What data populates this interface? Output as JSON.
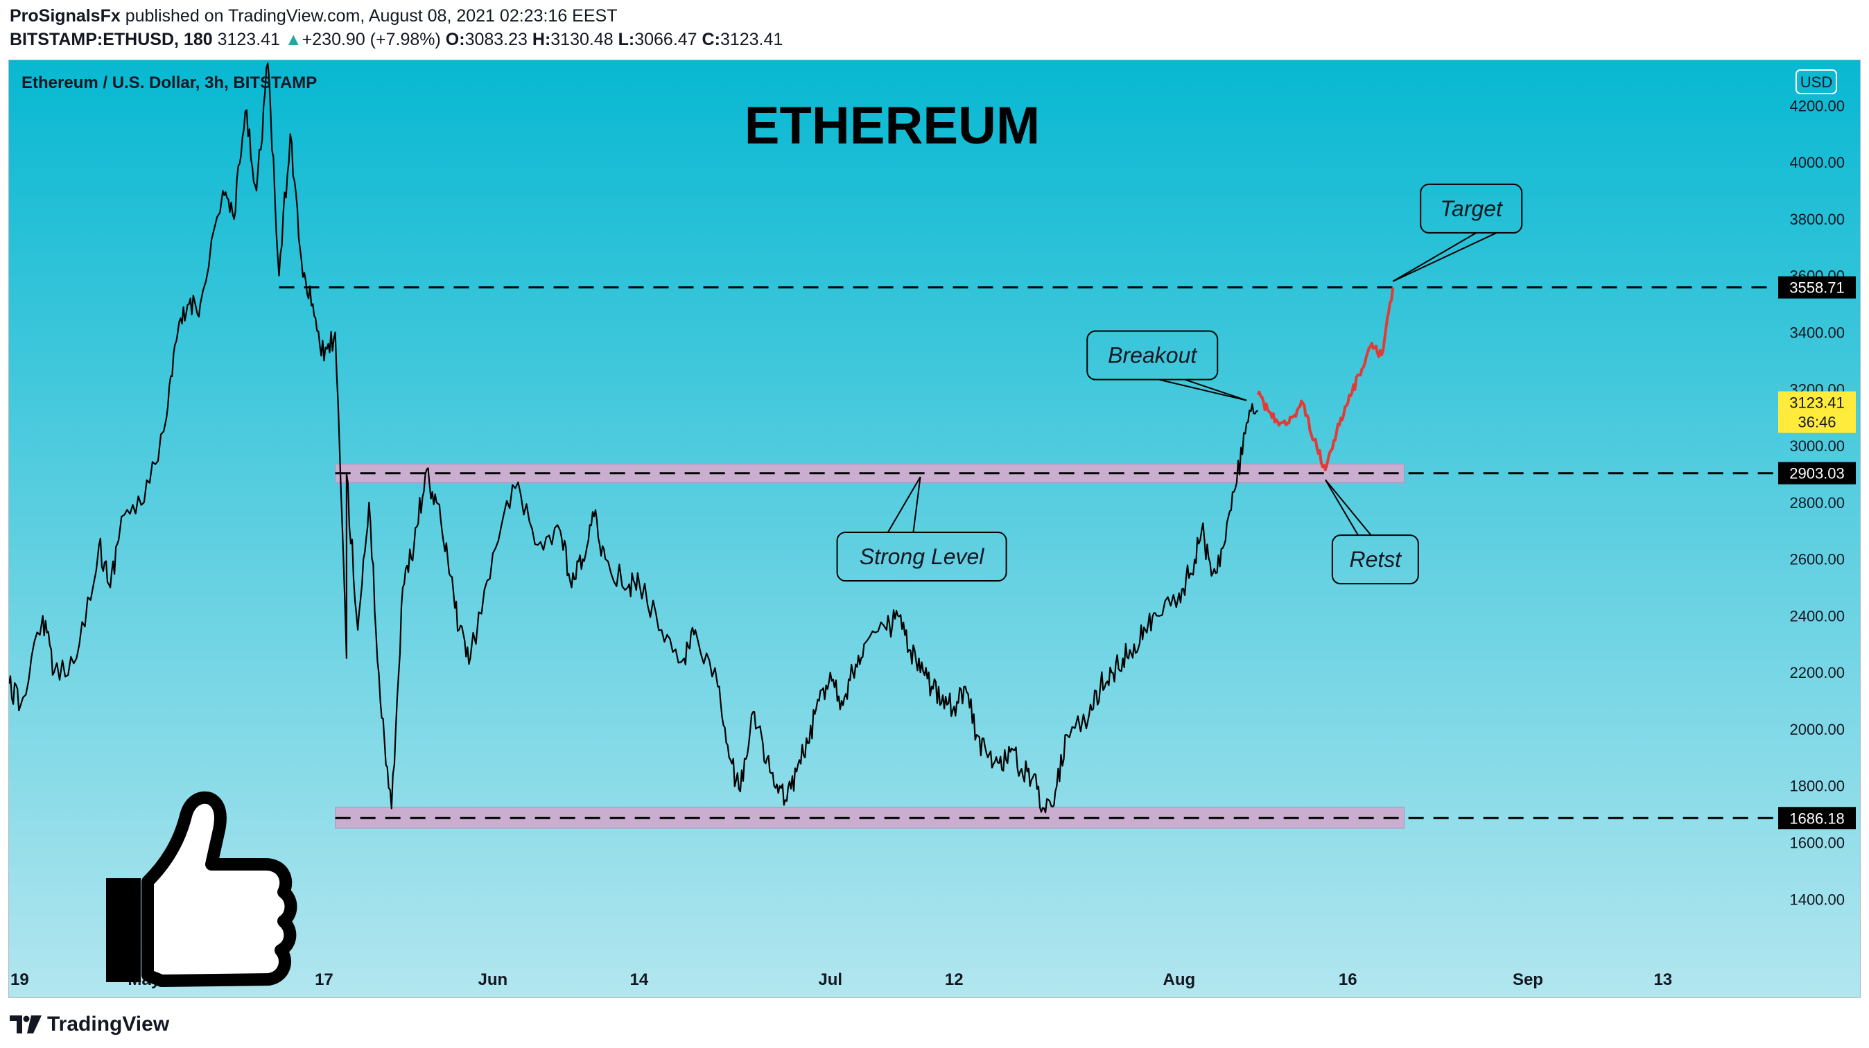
{
  "header": {
    "line1": {
      "author": "ProSignalsFx",
      "rest": " published on TradingView.com, August 08, 2021 02:23:16 EEST"
    },
    "line2": {
      "symbol": "BITSTAMP:ETHUSD, 180",
      "last": "3123.41",
      "arrow": "▲",
      "change": "+230.90 (+7.98%)",
      "o_label": "O:",
      "o": "3083.23",
      "h_label": "H:",
      "h": "3130.48",
      "l_label": "L:",
      "l": "3066.47",
      "c_label": "C:",
      "c": "3123.41"
    }
  },
  "footer": {
    "brand": "TradingView",
    "logo_icon": "tradingview-logo-icon"
  },
  "chart_data": {
    "type": "line",
    "title": "ETHEREUM",
    "instrument_label": "Ethereum / U.S. Dollar, 3h, BITSTAMP",
    "currency_badge": "USD",
    "y_axis": {
      "ticks": [
        1400,
        1600,
        1800,
        2000,
        2200,
        2400,
        2600,
        2800,
        3000,
        3200,
        3400,
        3600,
        3800,
        4000,
        4200
      ],
      "tick_labels": [
        "1400.00",
        "1600.00",
        "1800.00",
        "2000.00",
        "2200.00",
        "2400.00",
        "2600.00",
        "2800.00",
        "3000.00",
        "3200.00",
        "3400.00",
        "3600.00",
        "3800.00",
        "4000.00",
        "4200.00"
      ],
      "range": [
        1205,
        4360
      ]
    },
    "x_axis": {
      "range": [
        "2021-04-19",
        "2021-09-23"
      ],
      "ticks": [
        {
          "date": "2021-04-19",
          "label": "19"
        },
        {
          "date": "2021-05-01",
          "label": "May"
        },
        {
          "date": "2021-05-17",
          "label": "17"
        },
        {
          "date": "2021-06-01",
          "label": "Jun"
        },
        {
          "date": "2021-06-14",
          "label": "14"
        },
        {
          "date": "2021-07-01",
          "label": "Jul"
        },
        {
          "date": "2021-07-12",
          "label": "12"
        },
        {
          "date": "2021-08-01",
          "label": "Aug"
        },
        {
          "date": "2021-08-16",
          "label": "16"
        },
        {
          "date": "2021-09-01",
          "label": "Sep"
        },
        {
          "date": "2021-09-13",
          "label": "13"
        }
      ]
    },
    "price_series": {
      "name": "ETHUSD",
      "color": "#000000",
      "points": [
        [
          "2021-04-19",
          2160
        ],
        [
          "2021-04-20",
          2080
        ],
        [
          "2021-04-22",
          2400
        ],
        [
          "2021-04-23",
          2200
        ],
        [
          "2021-04-25",
          2250
        ],
        [
          "2021-04-27",
          2650
        ],
        [
          "2021-04-28",
          2500
        ],
        [
          "2021-04-29",
          2750
        ],
        [
          "2021-05-01",
          2800
        ],
        [
          "2021-05-03",
          3100
        ],
        [
          "2021-05-04",
          3400
        ],
        [
          "2021-05-05",
          3500
        ],
        [
          "2021-05-06",
          3500
        ],
        [
          "2021-05-08",
          3900
        ],
        [
          "2021-05-09",
          3800
        ],
        [
          "2021-05-10",
          4180
        ],
        [
          "2021-05-11",
          3900
        ],
        [
          "2021-05-12",
          4350
        ],
        [
          "2021-05-13",
          3600
        ],
        [
          "2021-05-14",
          4100
        ],
        [
          "2021-05-15",
          3650
        ],
        [
          "2021-05-16",
          3500
        ],
        [
          "2021-05-17",
          3300
        ],
        [
          "2021-05-18",
          3400
        ],
        [
          "2021-05-19",
          2250
        ],
        [
          "2021-05-19",
          2900
        ],
        [
          "2021-05-20",
          2350
        ],
        [
          "2021-05-21",
          2800
        ],
        [
          "2021-05-22",
          2100
        ],
        [
          "2021-05-23",
          1720
        ],
        [
          "2021-05-24",
          2500
        ],
        [
          "2021-05-25",
          2650
        ],
        [
          "2021-05-26",
          2900
        ],
        [
          "2021-05-27",
          2800
        ],
        [
          "2021-05-28",
          2600
        ],
        [
          "2021-05-29",
          2350
        ],
        [
          "2021-05-30",
          2250
        ],
        [
          "2021-06-01",
          2620
        ],
        [
          "2021-06-03",
          2850
        ],
        [
          "2021-06-05",
          2650
        ],
        [
          "2021-06-07",
          2700
        ],
        [
          "2021-06-08",
          2500
        ],
        [
          "2021-06-09",
          2600
        ],
        [
          "2021-06-10",
          2750
        ],
        [
          "2021-06-11",
          2600
        ],
        [
          "2021-06-13",
          2500
        ],
        [
          "2021-06-14",
          2520
        ],
        [
          "2021-06-16",
          2350
        ],
        [
          "2021-06-18",
          2250
        ],
        [
          "2021-06-19",
          2350
        ],
        [
          "2021-06-21",
          2150
        ],
        [
          "2021-06-22",
          1900
        ],
        [
          "2021-06-23",
          1780
        ],
        [
          "2021-06-24",
          2050
        ],
        [
          "2021-06-25",
          1950
        ],
        [
          "2021-06-26",
          1800
        ],
        [
          "2021-06-27",
          1750
        ],
        [
          "2021-06-28",
          1850
        ],
        [
          "2021-06-29",
          1950
        ],
        [
          "2021-06-30",
          2100
        ],
        [
          "2021-07-01",
          2200
        ],
        [
          "2021-07-02",
          2100
        ],
        [
          "2021-07-03",
          2200
        ],
        [
          "2021-07-04",
          2300
        ],
        [
          "2021-07-06",
          2350
        ],
        [
          "2021-07-07",
          2400
        ],
        [
          "2021-07-08",
          2280
        ],
        [
          "2021-07-09",
          2200
        ],
        [
          "2021-07-10",
          2150
        ],
        [
          "2021-07-11",
          2120
        ],
        [
          "2021-07-12",
          2080
        ],
        [
          "2021-07-13",
          2150
        ],
        [
          "2021-07-14",
          1980
        ],
        [
          "2021-07-15",
          1900
        ],
        [
          "2021-07-16",
          1880
        ],
        [
          "2021-07-17",
          1920
        ],
        [
          "2021-07-18",
          1860
        ],
        [
          "2021-07-19",
          1830
        ],
        [
          "2021-07-20",
          1720
        ],
        [
          "2021-07-21",
          1780
        ],
        [
          "2021-07-22",
          1980
        ],
        [
          "2021-07-24",
          2050
        ],
        [
          "2021-07-25",
          2150
        ],
        [
          "2021-07-26",
          2200
        ],
        [
          "2021-07-27",
          2250
        ],
        [
          "2021-07-28",
          2300
        ],
        [
          "2021-07-29",
          2350
        ],
        [
          "2021-07-30",
          2400
        ],
        [
          "2021-08-01",
          2480
        ],
        [
          "2021-08-02",
          2550
        ],
        [
          "2021-08-03",
          2700
        ],
        [
          "2021-08-04",
          2550
        ],
        [
          "2021-08-05",
          2650
        ],
        [
          "2021-08-06",
          2850
        ],
        [
          "2021-08-07",
          3080
        ],
        [
          "2021-08-08",
          3123.41
        ]
      ]
    },
    "projection": {
      "color": "#e53935",
      "points": [
        [
          "2021-08-08",
          3180
        ],
        [
          "2021-08-09",
          3120
        ],
        [
          "2021-08-10",
          3080
        ],
        [
          "2021-08-11",
          3100
        ],
        [
          "2021-08-12",
          3150
        ],
        [
          "2021-08-13",
          3020
        ],
        [
          "2021-08-14",
          2915
        ],
        [
          "2021-08-15",
          3050
        ],
        [
          "2021-08-16",
          3150
        ],
        [
          "2021-08-17",
          3250
        ],
        [
          "2021-08-18",
          3350
        ],
        [
          "2021-08-19",
          3320
        ],
        [
          "2021-08-20",
          3558.71
        ]
      ]
    },
    "levels": [
      {
        "value": 3558.71,
        "label": "3558.71",
        "from": "2021-05-13"
      },
      {
        "value": 2903.03,
        "label": "2903.03",
        "from": "2021-05-18"
      },
      {
        "value": 1686.18,
        "label": "1686.18",
        "from": "2021-05-18"
      }
    ],
    "zones": [
      {
        "from": "2021-05-18",
        "to": "2021-08-21",
        "low": 2870,
        "high": 2935
      },
      {
        "from": "2021-05-18",
        "to": "2021-08-21",
        "low": 1650,
        "high": 1725
      }
    ],
    "current_price": {
      "value": 3123.41,
      "label": "3123.41",
      "countdown": "36:46"
    },
    "annotations": [
      {
        "text": "Target",
        "anchor": [
          "2021-08-20",
          3580
        ]
      },
      {
        "text": "Breakout",
        "anchor": [
          "2021-08-07",
          3160
        ]
      },
      {
        "text": "Strong Level",
        "anchor": [
          "2021-07-09",
          2890
        ]
      },
      {
        "text": "Retst",
        "anchor": [
          "2021-08-14",
          2880
        ]
      }
    ],
    "icon": "thumbs-up-icon",
    "background": {
      "top": "#08b8d2",
      "bottom": "#b2e6ef"
    },
    "colors": {
      "zone": "#c9aed0",
      "badge_current": "#ffeb3b"
    }
  }
}
